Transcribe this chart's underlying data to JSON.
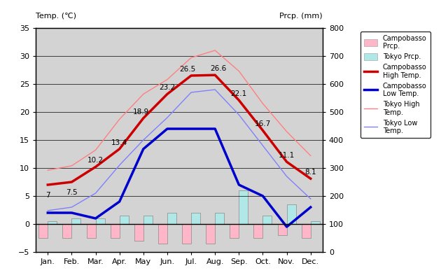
{
  "months": [
    "Jan.",
    "Feb.",
    "Mar.",
    "Apr.",
    "May",
    "Jun.",
    "Jul.",
    "Aug.",
    "Sep.",
    "Oct.",
    "Nov.",
    "Dec."
  ],
  "campobasso_high": [
    7,
    7.5,
    10.2,
    13.4,
    18.9,
    23.2,
    26.5,
    26.6,
    22.1,
    16.7,
    11.1,
    8.1
  ],
  "campobasso_low": [
    2,
    2,
    1,
    4,
    13.4,
    17,
    17,
    17,
    7,
    5,
    -0.5,
    3
  ],
  "campobasso_high_labels": [
    "7",
    "7.5",
    "10.2",
    "13.4",
    "18.9",
    "23.2",
    "26.5",
    "26.6",
    "22.1",
    "16.7",
    "11.1",
    "8.1"
  ],
  "tokyo_high": [
    9.6,
    10.4,
    13.2,
    18.7,
    23.2,
    25.8,
    29.7,
    31.0,
    27.3,
    21.5,
    16.5,
    12.2
  ],
  "tokyo_low": [
    2.4,
    3.0,
    5.5,
    10.5,
    15.0,
    19.0,
    23.5,
    24.0,
    19.5,
    14.0,
    8.5,
    4.5
  ],
  "campobasso_prcp_bar": [
    -2.5,
    -2.5,
    -2.5,
    -2.5,
    -3.0,
    -3.5,
    -3.5,
    -3.5,
    -2.5,
    -2.5,
    -2.0,
    -2.5
  ],
  "tokyo_prcp_bar": [
    0.5,
    1.0,
    1.0,
    1.5,
    1.5,
    2.0,
    2.0,
    2.0,
    6.0,
    1.5,
    3.5,
    0.5
  ],
  "ylim_temp": [
    -5,
    35
  ],
  "ylim_prcp": [
    0,
    800
  ],
  "bg_color": "#d3d3d3",
  "campobasso_high_color": "#cc0000",
  "campobasso_low_color": "#0000cc",
  "tokyo_high_color": "#ff8080",
  "tokyo_low_color": "#8080ff",
  "campobasso_prcp_color": "#ffb6c8",
  "tokyo_prcp_color": "#b0e8e8",
  "label_left": "Temp. (℃)",
  "label_right": "Prcp. (mm)",
  "legend_labels": [
    "Campobasso\nPrcp.",
    "Tokyo Prcp.",
    "Campobasso\nHigh Temp.",
    "Campobasso\nLow Temp.",
    "Tokyo High\nTemp.",
    "Tokyo Low\nTemp."
  ]
}
